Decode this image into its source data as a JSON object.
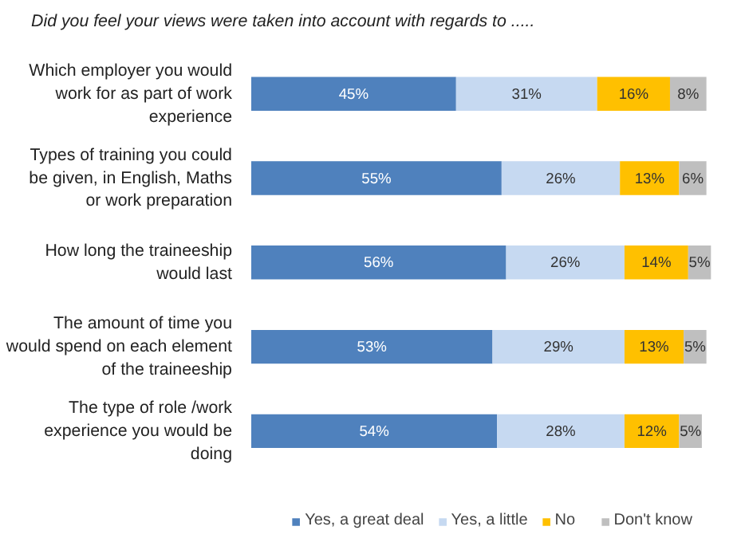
{
  "chart_data": {
    "type": "bar",
    "orientation": "horizontal",
    "stacked": true,
    "legend": "bottom",
    "title": "Did you feel your views were taken into account with regards to .....",
    "categories": [
      "Which employer you would work for as part of work experience",
      "Types of training you could be given, in English, Maths or work preparation",
      "How long the traineeship would last",
      "The amount of time you would spend on each element of the traineeship",
      "The type of role /work experience you would be doing"
    ],
    "series": [
      {
        "name": "Yes, a great deal",
        "color": "#4f81bd",
        "values": [
          45,
          55,
          56,
          53,
          54
        ],
        "value_labels": [
          "45%",
          "55%",
          "56%",
          "53%",
          "54%"
        ]
      },
      {
        "name": "Yes, a little",
        "color": "#c6d9f1",
        "values": [
          31,
          26,
          26,
          29,
          28
        ],
        "value_labels": [
          "31%",
          "26%",
          "26%",
          "29%",
          "28%"
        ]
      },
      {
        "name": "No",
        "color": "#ffc000",
        "values": [
          16,
          13,
          14,
          13,
          12
        ],
        "value_labels": [
          "16%",
          "13%",
          "14%",
          "13%",
          "12%"
        ]
      },
      {
        "name": "Don't know",
        "color": "#bfbfbf",
        "values": [
          8,
          6,
          5,
          5,
          5
        ],
        "value_labels": [
          "8%",
          "6%",
          "5%",
          "5%",
          "5%"
        ]
      }
    ]
  }
}
